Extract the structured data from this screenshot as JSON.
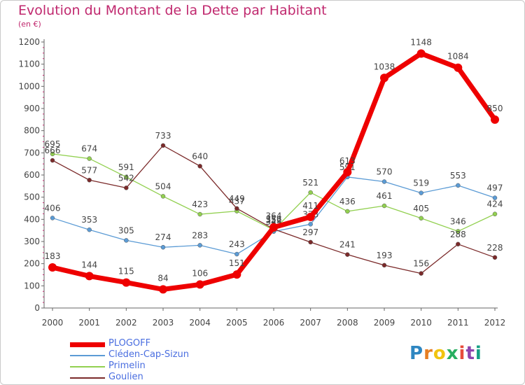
{
  "chart_data": {
    "type": "line",
    "title": "Evolution du Montant de la Dette par Habitant",
    "subtitle": "(en €)",
    "xlabel": "",
    "ylabel": "",
    "ylim": [
      0,
      1200
    ],
    "yticks": [
      0,
      100,
      200,
      300,
      400,
      500,
      600,
      700,
      800,
      900,
      1000,
      1100,
      1200
    ],
    "x": [
      "2000",
      "2001",
      "2002",
      "2003",
      "2004",
      "2005",
      "2006",
      "2007",
      "2008",
      "2009",
      "2010",
      "2011",
      "2012"
    ],
    "grid": false,
    "legend_position": "bottom-left",
    "series": [
      {
        "name": "PLOGOFF",
        "color": "#ee0000",
        "values": [
          183,
          144,
          115,
          84,
          106,
          151,
          364,
          411,
          613,
          1038,
          1148,
          1084,
          850
        ]
      },
      {
        "name": "Cléden-Cap-Sizun",
        "color": "#5b9bd5",
        "values": [
          406,
          353,
          305,
          274,
          283,
          243,
          345,
          378,
          591,
          570,
          519,
          553,
          497
        ]
      },
      {
        "name": "Primelin",
        "color": "#92d050",
        "values": [
          695,
          674,
          591,
          504,
          423,
          437,
          352,
          521,
          436,
          461,
          405,
          346,
          424
        ]
      },
      {
        "name": "Goulien",
        "color": "#7b2a2a",
        "values": [
          666,
          577,
          542,
          733,
          640,
          449,
          356,
          297,
          241,
          193,
          156,
          288,
          228
        ]
      }
    ]
  },
  "logo": {
    "letters": [
      "P",
      "r",
      "o",
      "x",
      "i",
      "t",
      "i"
    ],
    "colors": [
      "#2e86c1",
      "#e67e22",
      "#f1c40f",
      "#27ae60",
      "#e74c3c",
      "#8e44ad",
      "#16a085"
    ]
  }
}
